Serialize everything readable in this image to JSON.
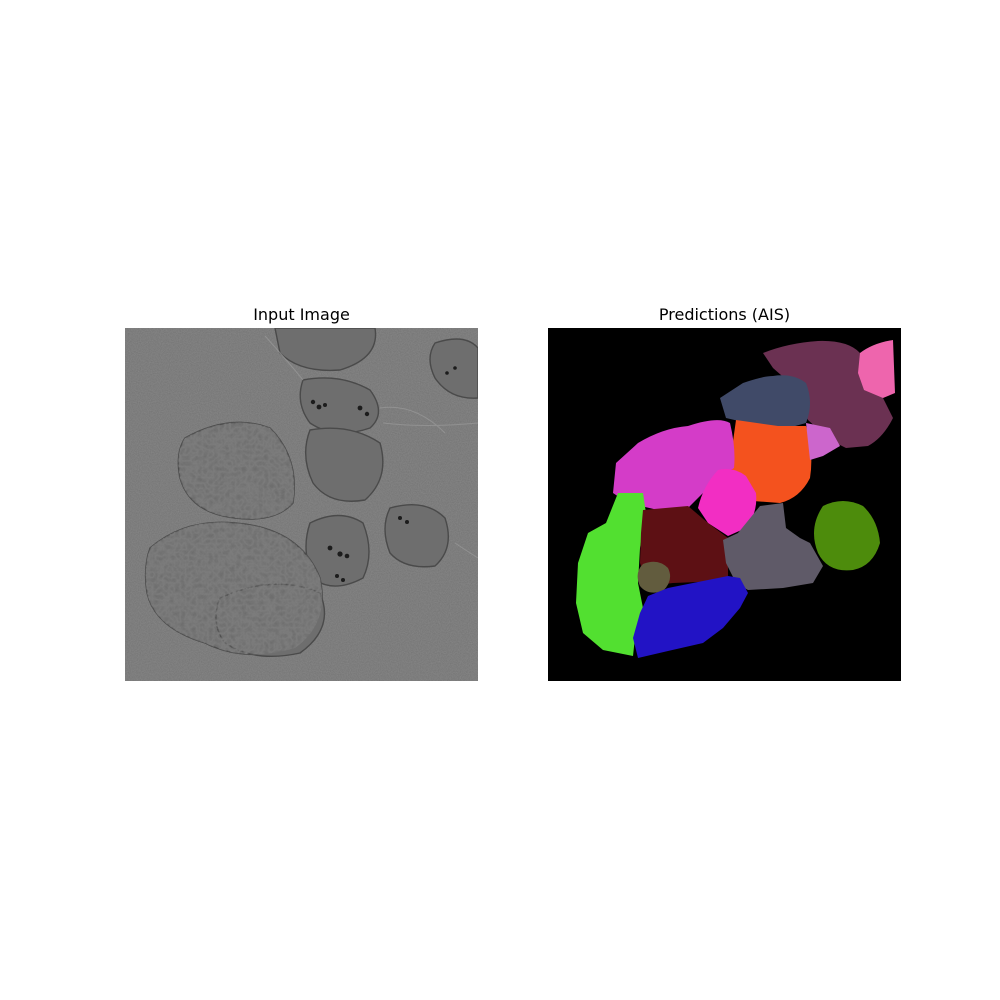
{
  "figure": {
    "left_title": "Input Image",
    "right_title": "Predictions (AIS)"
  },
  "colors": {
    "background": "#ffffff",
    "input_base": "#737373",
    "mask_background": "#000000",
    "segments": {
      "maroon_top_right": "#6b3152",
      "pink_top_corner": "#ee65ad",
      "slate_blue": "#404a68",
      "orange": "#f4521e",
      "lilac": "#cc66cc",
      "magenta": "#d43cc8",
      "hot_pink": "#f22ec3",
      "green": "#52e030",
      "dark_red": "#5d1014",
      "gray": "#5f5a68",
      "olive_green": "#4d8c0c",
      "olive_small": "#625c3e",
      "blue": "#2213c5"
    }
  }
}
